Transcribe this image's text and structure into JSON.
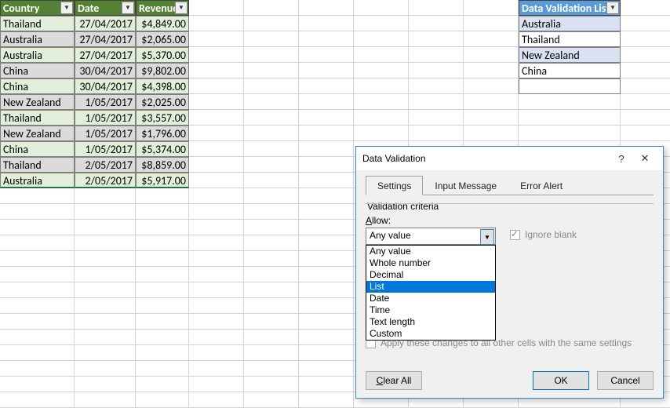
{
  "main_table": {
    "headers": [
      "Country",
      "Date",
      "Revenue"
    ],
    "rows": [
      {
        "country": "Thailand",
        "date": "27/04/2017",
        "revenue": "$4,849.00",
        "band": "a"
      },
      {
        "country": "Australia",
        "date": "27/04/2017",
        "revenue": "$2,065.00",
        "band": "b"
      },
      {
        "country": "Australia",
        "date": "27/04/2017",
        "revenue": "$5,370.00",
        "band": "a"
      },
      {
        "country": "China",
        "date": "30/04/2017",
        "revenue": "$9,802.00",
        "band": "b"
      },
      {
        "country": "China",
        "date": "30/04/2017",
        "revenue": "$4,398.00",
        "band": "a"
      },
      {
        "country": "New Zealand",
        "date": "1/05/2017",
        "revenue": "$2,025.00",
        "band": "b"
      },
      {
        "country": "Thailand",
        "date": "1/05/2017",
        "revenue": "$3,557.00",
        "band": "a"
      },
      {
        "country": "New Zealand",
        "date": "1/05/2017",
        "revenue": "$1,796.00",
        "band": "b"
      },
      {
        "country": "China",
        "date": "1/05/2017",
        "revenue": "$5,374.00",
        "band": "a"
      },
      {
        "country": "Thailand",
        "date": "2/05/2017",
        "revenue": "$8,859.00",
        "band": "b"
      },
      {
        "country": "Australia",
        "date": "2/05/2017",
        "revenue": "$5,917.00",
        "band": "a"
      }
    ]
  },
  "validation_table": {
    "header": "Data Validation List:",
    "items": [
      "Australia",
      "Thailand",
      "New Zealand",
      "China"
    ]
  },
  "grid": {
    "total_rows": 26,
    "total_cols": 11,
    "gridline_color": "#d4d4d4"
  },
  "dialog": {
    "title": "Data Validation",
    "tabs": [
      "Settings",
      "Input Message",
      "Error Alert"
    ],
    "active_tab": 0,
    "fieldset_title": "Validation criteria",
    "allow_label": "Allow:",
    "allow_value": "Any value",
    "allow_options": [
      "Any value",
      "Whole number",
      "Decimal",
      "List",
      "Date",
      "Time",
      "Text length",
      "Custom"
    ],
    "allow_highlighted_index": 3,
    "ignore_blank_label": "Ignore blank",
    "ignore_blank_checked": true,
    "apply_label": "Apply these changes to all other cells with the same settings",
    "buttons": {
      "clear_all": "Clear All",
      "ok": "OK",
      "cancel": "Cancel"
    }
  },
  "colors": {
    "header_green": "#548235",
    "header_blue": "#5b9bd5",
    "band_green": "#e2efda",
    "band_gray": "#dbdbdb",
    "band_lightblue": "#d9e1f2",
    "dialog_border": "#3e8ac6",
    "selection_highlight": "#0078d7"
  }
}
